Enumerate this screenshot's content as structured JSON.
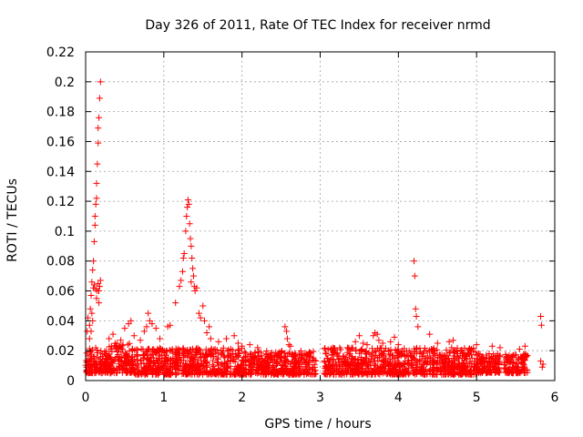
{
  "chart_data": {
    "type": "scatter",
    "title": "Day 326 of 2011, Rate Of TEC Index for receiver nrmd",
    "xlabel": "GPS time / hours",
    "ylabel": "ROTI / TECUs",
    "xlim": [
      0,
      6
    ],
    "ylim": [
      0,
      0.22
    ],
    "x_ticks": [
      0,
      1,
      2,
      3,
      4,
      5,
      6
    ],
    "y_ticks": [
      0,
      0.02,
      0.04,
      0.06,
      0.08,
      0.1,
      0.12,
      0.14,
      0.16,
      0.18,
      0.2,
      0.22
    ],
    "grid": true,
    "marker": "+",
    "series": [
      {
        "name": "ROTI",
        "color": "#ff0000",
        "points": [
          [
            0.02,
            0.033
          ],
          [
            0.03,
            0.042
          ],
          [
            0.05,
            0.028
          ],
          [
            0.06,
            0.048
          ],
          [
            0.07,
            0.057
          ],
          [
            0.08,
            0.066
          ],
          [
            0.09,
            0.074
          ],
          [
            0.1,
            0.08
          ],
          [
            0.11,
            0.093
          ],
          [
            0.12,
            0.104
          ],
          [
            0.12,
            0.11
          ],
          [
            0.13,
            0.118
          ],
          [
            0.14,
            0.122
          ],
          [
            0.14,
            0.132
          ],
          [
            0.15,
            0.145
          ],
          [
            0.16,
            0.159
          ],
          [
            0.16,
            0.169
          ],
          [
            0.17,
            0.176
          ],
          [
            0.18,
            0.189
          ],
          [
            0.19,
            0.2
          ],
          [
            0.1,
            0.062
          ],
          [
            0.11,
            0.064
          ],
          [
            0.13,
            0.061
          ],
          [
            0.15,
            0.06
          ],
          [
            0.16,
            0.065
          ],
          [
            0.17,
            0.06
          ],
          [
            0.18,
            0.063
          ],
          [
            0.19,
            0.067
          ],
          [
            0.17,
            0.052
          ],
          [
            0.14,
            0.055
          ],
          [
            0.09,
            0.04
          ],
          [
            0.07,
            0.033
          ],
          [
            0.05,
            0.037
          ],
          [
            0.08,
            0.045
          ],
          [
            0.3,
            0.028
          ],
          [
            0.35,
            0.031
          ],
          [
            0.4,
            0.025
          ],
          [
            0.45,
            0.027
          ],
          [
            0.5,
            0.035
          ],
          [
            0.55,
            0.038
          ],
          [
            0.58,
            0.04
          ],
          [
            0.62,
            0.03
          ],
          [
            0.7,
            0.027
          ],
          [
            0.75,
            0.033
          ],
          [
            0.78,
            0.036
          ],
          [
            0.8,
            0.045
          ],
          [
            0.82,
            0.04
          ],
          [
            0.85,
            0.038
          ],
          [
            0.9,
            0.035
          ],
          [
            0.95,
            0.028
          ],
          [
            1.05,
            0.036
          ],
          [
            1.08,
            0.037
          ],
          [
            1.15,
            0.052
          ],
          [
            1.2,
            0.063
          ],
          [
            1.22,
            0.067
          ],
          [
            1.24,
            0.073
          ],
          [
            1.25,
            0.082
          ],
          [
            1.26,
            0.085
          ],
          [
            1.28,
            0.1
          ],
          [
            1.29,
            0.11
          ],
          [
            1.3,
            0.116
          ],
          [
            1.31,
            0.121
          ],
          [
            1.32,
            0.118
          ],
          [
            1.33,
            0.105
          ],
          [
            1.34,
            0.095
          ],
          [
            1.35,
            0.09
          ],
          [
            1.36,
            0.082
          ],
          [
            1.37,
            0.075
          ],
          [
            1.38,
            0.07
          ],
          [
            1.39,
            0.063
          ],
          [
            1.4,
            0.06
          ],
          [
            1.42,
            0.062
          ],
          [
            1.35,
            0.066
          ],
          [
            1.45,
            0.045
          ],
          [
            1.47,
            0.042
          ],
          [
            1.5,
            0.05
          ],
          [
            1.52,
            0.04
          ],
          [
            1.55,
            0.032
          ],
          [
            1.58,
            0.036
          ],
          [
            1.6,
            0.028
          ],
          [
            1.7,
            0.026
          ],
          [
            1.8,
            0.028
          ],
          [
            1.9,
            0.03
          ],
          [
            1.95,
            0.025
          ],
          [
            2.0,
            0.023
          ],
          [
            2.1,
            0.024
          ],
          [
            2.2,
            0.022
          ],
          [
            2.55,
            0.036
          ],
          [
            2.57,
            0.033
          ],
          [
            2.58,
            0.028
          ],
          [
            2.6,
            0.024
          ],
          [
            2.62,
            0.023
          ],
          [
            3.35,
            0.022
          ],
          [
            3.45,
            0.026
          ],
          [
            3.5,
            0.03
          ],
          [
            3.55,
            0.025
          ],
          [
            3.6,
            0.024
          ],
          [
            3.68,
            0.03
          ],
          [
            3.7,
            0.032
          ],
          [
            3.73,
            0.031
          ],
          [
            3.75,
            0.027
          ],
          [
            3.8,
            0.025
          ],
          [
            3.9,
            0.026
          ],
          [
            3.95,
            0.029
          ],
          [
            4.0,
            0.024
          ],
          [
            4.2,
            0.08
          ],
          [
            4.21,
            0.07
          ],
          [
            4.22,
            0.048
          ],
          [
            4.23,
            0.043
          ],
          [
            4.25,
            0.036
          ],
          [
            4.4,
            0.031
          ],
          [
            4.5,
            0.025
          ],
          [
            4.65,
            0.026
          ],
          [
            4.7,
            0.027
          ],
          [
            4.8,
            0.02
          ],
          [
            5.0,
            0.024
          ],
          [
            5.2,
            0.023
          ],
          [
            5.3,
            0.022
          ],
          [
            5.55,
            0.021
          ],
          [
            5.62,
            0.023
          ],
          [
            5.82,
            0.043
          ],
          [
            5.83,
            0.037
          ],
          [
            5.82,
            0.013
          ],
          [
            5.84,
            0.009
          ],
          [
            5.85,
            0.011
          ]
        ],
        "dense_band": [
          {
            "x_start": 0.0,
            "x_end": 0.3,
            "y_min": 0.005,
            "y_max": 0.022
          },
          {
            "x_start": 0.3,
            "x_end": 0.6,
            "y_min": 0.005,
            "y_max": 0.025
          },
          {
            "x_start": 0.6,
            "x_end": 2.0,
            "y_min": 0.004,
            "y_max": 0.022
          },
          {
            "x_start": 2.0,
            "x_end": 2.95,
            "y_min": 0.004,
            "y_max": 0.02
          },
          {
            "x_start": 3.05,
            "x_end": 4.0,
            "y_min": 0.004,
            "y_max": 0.022
          },
          {
            "x_start": 4.0,
            "x_end": 5.0,
            "y_min": 0.004,
            "y_max": 0.022
          },
          {
            "x_start": 5.0,
            "x_end": 5.3,
            "y_min": 0.005,
            "y_max": 0.018
          },
          {
            "x_start": 5.35,
            "x_end": 5.65,
            "y_min": 0.005,
            "y_max": 0.018
          }
        ]
      }
    ]
  }
}
